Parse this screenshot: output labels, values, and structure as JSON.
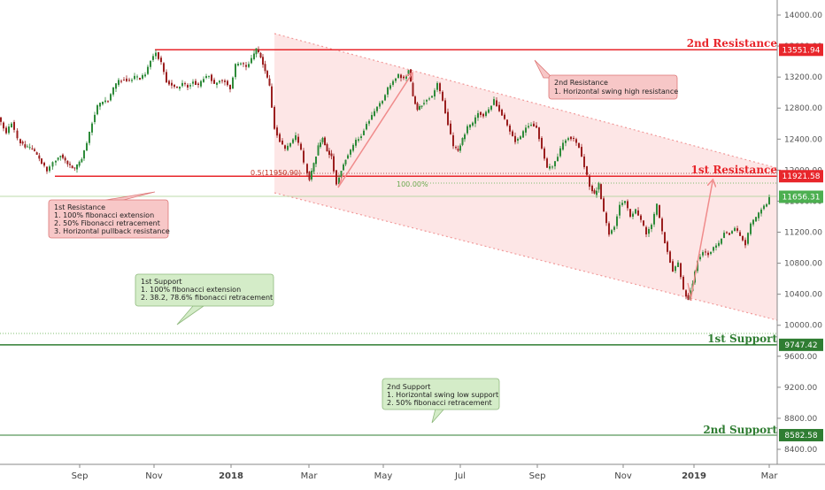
{
  "chart_data": {
    "type": "candlestick",
    "colors": {
      "up": "#2e8b3a",
      "down": "#9b1f1f",
      "resistance": "#e8262b",
      "support": "#2f7d32",
      "channel_fill": "#fde6e6",
      "channel_border": "#f19a9a",
      "arrow": "#f08b8b",
      "resistance_box": "#f7c7c7",
      "support_box": "#d4ecc8",
      "current_price": "#4caf50"
    },
    "y_axis": {
      "min": 8200,
      "max": 14200,
      "ticks": [
        "14000.00",
        "13600.00",
        "13200.00",
        "12800.00",
        "12400.00",
        "12000.00",
        "11600.00",
        "11200.00",
        "10800.00",
        "10400.00",
        "10000.00",
        "9600.00",
        "9200.00",
        "8800.00",
        "8400.00"
      ]
    },
    "x_axis": {
      "ticks": [
        "Sep",
        "Nov",
        "2018",
        "Mar",
        "May",
        "Jul",
        "Sep",
        "Nov",
        "2019",
        "Mar"
      ]
    },
    "levels": [
      {
        "name": "2nd Resistance",
        "value": 13551.94,
        "price_label": "13551.94",
        "kind": "resistance"
      },
      {
        "name": "1st Resistance",
        "value": 11921.58,
        "price_label": "11921.58",
        "kind": "resistance"
      },
      {
        "name": "1st Support",
        "value": 9747.42,
        "price_label": "9747.42",
        "kind": "support"
      },
      {
        "name": "2nd Support",
        "value": 8582.58,
        "price_label": "8582.58",
        "kind": "support"
      }
    ],
    "current_price": {
      "value": 11656.31,
      "label": "11656.31"
    },
    "fib_labels": {
      "half": "0.5(11950.90)",
      "full": "100.00%"
    },
    "annotations": [
      {
        "id": "r2",
        "kind": "resistance",
        "lines": [
          "2nd Resistance",
          "1. Horizontal swing high resistance"
        ]
      },
      {
        "id": "r1",
        "kind": "resistance",
        "lines": [
          "1st Resistance",
          "1. 100% fibonacci extension",
          "2. 50% Fibonacci retracement",
          "3. Horizontal pullback resistance"
        ]
      },
      {
        "id": "s1",
        "kind": "support",
        "lines": [
          "1st Support",
          "1. 100% fibonacci extension",
          "2. 38.2, 78.6% fibonacci retracement"
        ]
      },
      {
        "id": "s2",
        "kind": "support",
        "lines": [
          "2nd Support",
          "1. Horizontal swing low support",
          "2. 50% fibonacci retracement"
        ]
      }
    ],
    "price_path": [
      [
        0,
        12680
      ],
      [
        9,
        12480
      ],
      [
        15,
        12620
      ],
      [
        22,
        12400
      ],
      [
        30,
        12300
      ],
      [
        38,
        12270
      ],
      [
        46,
        12150
      ],
      [
        55,
        11990
      ],
      [
        62,
        12100
      ],
      [
        70,
        12200
      ],
      [
        78,
        12080
      ],
      [
        86,
        12010
      ],
      [
        94,
        12150
      ],
      [
        100,
        12350
      ],
      [
        106,
        12620
      ],
      [
        112,
        12820
      ],
      [
        118,
        12880
      ],
      [
        124,
        12900
      ],
      [
        130,
        13050
      ],
      [
        136,
        13150
      ],
      [
        142,
        13180
      ],
      [
        148,
        13150
      ],
      [
        154,
        13200
      ],
      [
        160,
        13180
      ],
      [
        166,
        13240
      ],
      [
        172,
        13420
      ],
      [
        178,
        13520
      ],
      [
        184,
        13380
      ],
      [
        190,
        13150
      ],
      [
        196,
        13100
      ],
      [
        202,
        13050
      ],
      [
        208,
        13120
      ],
      [
        214,
        13080
      ],
      [
        220,
        13150
      ],
      [
        226,
        13080
      ],
      [
        232,
        13190
      ],
      [
        238,
        13230
      ],
      [
        244,
        13100
      ],
      [
        250,
        13160
      ],
      [
        256,
        13150
      ],
      [
        262,
        13050
      ],
      [
        268,
        13350
      ],
      [
        274,
        13380
      ],
      [
        280,
        13330
      ],
      [
        286,
        13430
      ],
      [
        291,
        13560
      ],
      [
        296,
        13460
      ],
      [
        301,
        13280
      ],
      [
        306,
        13080
      ],
      [
        312,
        12550
      ],
      [
        318,
        12380
      ],
      [
        324,
        12260
      ],
      [
        330,
        12350
      ],
      [
        336,
        12430
      ],
      [
        342,
        12250
      ],
      [
        346,
        12080
      ],
      [
        351,
        11880
      ],
      [
        356,
        12080
      ],
      [
        361,
        12300
      ],
      [
        366,
        12420
      ],
      [
        371,
        12250
      ],
      [
        376,
        12180
      ],
      [
        382,
        11820
      ],
      [
        387,
        12000
      ],
      [
        392,
        12150
      ],
      [
        398,
        12250
      ],
      [
        404,
        12380
      ],
      [
        410,
        12450
      ],
      [
        416,
        12600
      ],
      [
        422,
        12700
      ],
      [
        428,
        12820
      ],
      [
        434,
        12900
      ],
      [
        440,
        13050
      ],
      [
        446,
        13150
      ],
      [
        452,
        13230
      ],
      [
        458,
        13180
      ],
      [
        463,
        13300
      ],
      [
        468,
        12950
      ],
      [
        473,
        12780
      ],
      [
        478,
        12850
      ],
      [
        484,
        12920
      ],
      [
        490,
        12950
      ],
      [
        496,
        13120
      ],
      [
        502,
        12900
      ],
      [
        508,
        12600
      ],
      [
        514,
        12300
      ],
      [
        519,
        12250
      ],
      [
        524,
        12400
      ],
      [
        530,
        12550
      ],
      [
        536,
        12600
      ],
      [
        542,
        12750
      ],
      [
        548,
        12700
      ],
      [
        554,
        12780
      ],
      [
        560,
        12900
      ],
      [
        566,
        12780
      ],
      [
        572,
        12650
      ],
      [
        578,
        12500
      ],
      [
        584,
        12380
      ],
      [
        590,
        12420
      ],
      [
        596,
        12550
      ],
      [
        602,
        12600
      ],
      [
        608,
        12550
      ],
      [
        614,
        12280
      ],
      [
        620,
        12020
      ],
      [
        626,
        12050
      ],
      [
        632,
        12180
      ],
      [
        638,
        12350
      ],
      [
        644,
        12430
      ],
      [
        650,
        12400
      ],
      [
        656,
        12300
      ],
      [
        662,
        12050
      ],
      [
        668,
        11800
      ],
      [
        673,
        11680
      ],
      [
        678,
        11820
      ],
      [
        684,
        11450
      ],
      [
        690,
        11180
      ],
      [
        696,
        11280
      ],
      [
        702,
        11550
      ],
      [
        708,
        11600
      ],
      [
        714,
        11400
      ],
      [
        720,
        11480
      ],
      [
        726,
        11350
      ],
      [
        732,
        11180
      ],
      [
        738,
        11300
      ],
      [
        744,
        11550
      ],
      [
        750,
        11200
      ],
      [
        756,
        10950
      ],
      [
        762,
        10700
      ],
      [
        768,
        10800
      ],
      [
        774,
        10450
      ],
      [
        779,
        10330
      ],
      [
        784,
        10550
      ],
      [
        790,
        10850
      ],
      [
        796,
        10950
      ],
      [
        802,
        10920
      ],
      [
        808,
        11000
      ],
      [
        814,
        11050
      ],
      [
        820,
        11200
      ],
      [
        826,
        11180
      ],
      [
        832,
        11250
      ],
      [
        838,
        11150
      ],
      [
        844,
        11050
      ],
      [
        850,
        11300
      ],
      [
        856,
        11380
      ],
      [
        862,
        11500
      ],
      [
        868,
        11560
      ],
      [
        872,
        11656
      ]
    ]
  }
}
